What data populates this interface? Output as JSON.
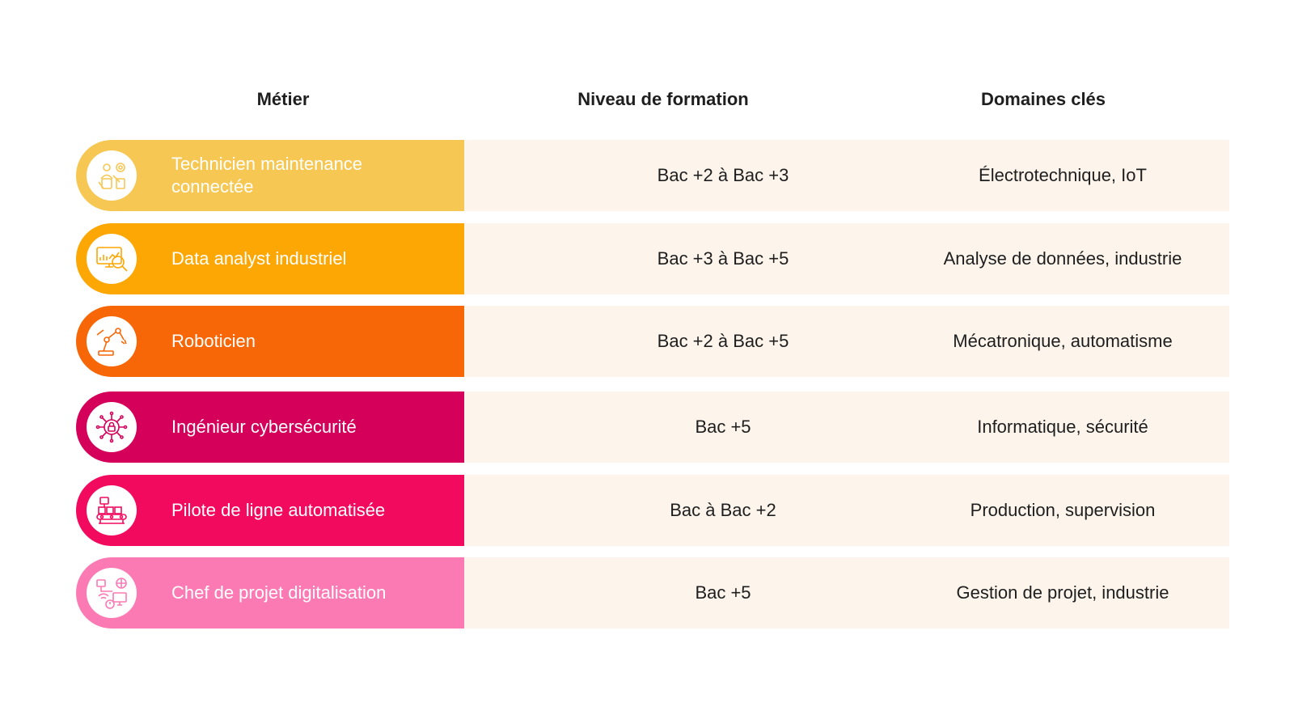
{
  "header": {
    "metier": "Métier",
    "niveau": "Niveau de formation",
    "domaines": "Domaines clés"
  },
  "rows": [
    {
      "metier": "Technicien maintenance connectée",
      "niveau": "Bac +2 à Bac +3",
      "domaines": "Électrotechnique, IoT",
      "color": "#f6c752",
      "icon": "maintenance-technician-icon"
    },
    {
      "metier": "Data analyst industriel",
      "niveau": "Bac +3 à Bac +5",
      "domaines": "Analyse de données, industrie",
      "color": "#fca703",
      "icon": "data-analysis-icon"
    },
    {
      "metier": "Roboticien",
      "niveau": "Bac +2 à Bac +5",
      "domaines": "Mécatronique, automatisme",
      "color": "#f76707",
      "icon": "robotic-arm-icon"
    },
    {
      "metier": "Ingénieur cybersécurité",
      "niveau": "Bac +5",
      "domaines": "Informatique, sécurité",
      "color": "#d4005a",
      "icon": "cybersecurity-lock-icon"
    },
    {
      "metier": "Pilote de ligne automatisée",
      "niveau": "Bac à Bac +2",
      "domaines": "Production, supervision",
      "color": "#f20a5e",
      "icon": "conveyor-line-icon"
    },
    {
      "metier": "Chef de projet digitalisation",
      "niveau": "Bac +5",
      "domaines": "Gestion de projet, industrie",
      "color": "#fc7ab4",
      "icon": "digital-network-icon"
    }
  ]
}
